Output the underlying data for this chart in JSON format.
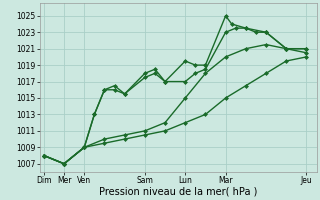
{
  "background_color": "#cce8e0",
  "grid_color": "#aacfc8",
  "line_color": "#1a6b2a",
  "marker_style": "D",
  "marker_size": 2.0,
  "line_width": 1.0,
  "xlabel": "Pression niveau de la mer( hPa )",
  "xlabel_fontsize": 7,
  "ytick_fontsize": 5.5,
  "xtick_fontsize": 5.5,
  "ylim": [
    1006,
    1026.5
  ],
  "yticks": [
    1007,
    1009,
    1011,
    1013,
    1015,
    1017,
    1019,
    1021,
    1023,
    1025
  ],
  "x_tick_positions": [
    0,
    1,
    2,
    5,
    7,
    9,
    13
  ],
  "x_tick_labels": [
    "Dim",
    "Mer",
    "Ven",
    "Sam",
    "Lun",
    "Mar",
    "Jeu"
  ],
  "xlim": [
    -0.2,
    13.5
  ],
  "series": [
    {
      "x": [
        0,
        1,
        2,
        2.5,
        3,
        3.5,
        4,
        5,
        5.5,
        6,
        7,
        7.5,
        8,
        9,
        9.3,
        10,
        10.5,
        11,
        12,
        13
      ],
      "y": [
        1008,
        1007,
        1009,
        1013,
        1016,
        1016.5,
        1015.5,
        1018,
        1018.5,
        1017,
        1019.5,
        1019,
        1019,
        1025,
        1024,
        1023.5,
        1023,
        1023,
        1021,
        1021
      ]
    },
    {
      "x": [
        0,
        1,
        2,
        2.5,
        3,
        3.5,
        4,
        5,
        5.5,
        6,
        7,
        7.5,
        8,
        9,
        9.5,
        10,
        11,
        12,
        13
      ],
      "y": [
        1008,
        1007,
        1009,
        1013,
        1016,
        1016,
        1015.5,
        1017.5,
        1018,
        1017,
        1017,
        1018,
        1018.5,
        1023,
        1023.5,
        1023.5,
        1023,
        1021,
        1020.5
      ]
    },
    {
      "x": [
        0,
        1,
        2,
        3,
        4,
        5,
        6,
        7,
        8,
        9,
        10,
        11,
        12,
        13
      ],
      "y": [
        1008,
        1007,
        1009,
        1010,
        1010.5,
        1011,
        1012,
        1015,
        1018,
        1020,
        1021,
        1021.5,
        1021,
        1021
      ]
    },
    {
      "x": [
        0,
        1,
        2,
        3,
        4,
        5,
        6,
        7,
        8,
        9,
        10,
        11,
        12,
        13
      ],
      "y": [
        1008,
        1007,
        1009,
        1009.5,
        1010,
        1010.5,
        1011,
        1012,
        1013,
        1015,
        1016.5,
        1018,
        1019.5,
        1020
      ]
    }
  ]
}
